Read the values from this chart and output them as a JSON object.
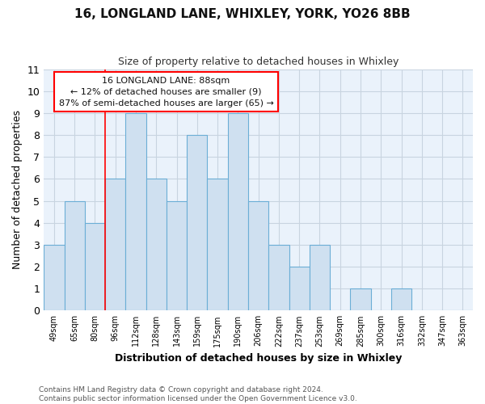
{
  "title_line1": "16, LONGLAND LANE, WHIXLEY, YORK, YO26 8BB",
  "title_line2": "Size of property relative to detached houses in Whixley",
  "xlabel": "Distribution of detached houses by size in Whixley",
  "ylabel": "Number of detached properties",
  "categories": [
    "49sqm",
    "65sqm",
    "80sqm",
    "96sqm",
    "112sqm",
    "128sqm",
    "143sqm",
    "159sqm",
    "175sqm",
    "190sqm",
    "206sqm",
    "222sqm",
    "237sqm",
    "253sqm",
    "269sqm",
    "285sqm",
    "300sqm",
    "316sqm",
    "332sqm",
    "347sqm",
    "363sqm"
  ],
  "values": [
    3,
    5,
    4,
    6,
    9,
    6,
    5,
    8,
    6,
    9,
    5,
    3,
    2,
    3,
    0,
    1,
    0,
    1,
    0,
    0,
    0
  ],
  "bar_color": "#cfe0f0",
  "bar_edge_color": "#6baed6",
  "grid_color": "#c8d4e0",
  "red_line_x": 2.5,
  "annotation_line1": "16 LONGLAND LANE: 88sqm",
  "annotation_line2": "← 12% of detached houses are smaller (9)",
  "annotation_line3": "87% of semi-detached houses are larger (65) →",
  "footer_text": "Contains HM Land Registry data © Crown copyright and database right 2024.\nContains public sector information licensed under the Open Government Licence v3.0.",
  "ylim_max": 11,
  "background_color": "#ffffff",
  "plot_bg_color": "#eaf2fb"
}
